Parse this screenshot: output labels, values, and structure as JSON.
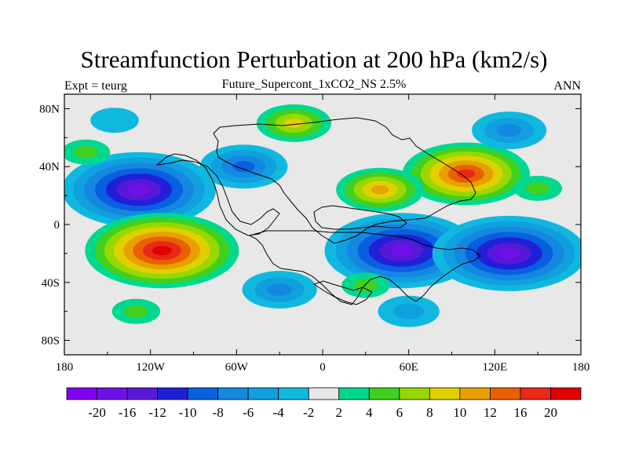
{
  "chart_data": {
    "type": "contour-map",
    "title": "Streamfunction Perturbation at 200 hPa (km2/s)",
    "left_string": "Expt = teurg",
    "center_string": "Future_Supercont_1xCO2_NS 2.5%",
    "right_string": "ANN",
    "x_axis": {
      "range": [
        -180,
        180
      ],
      "ticks": [
        -180,
        -120,
        -60,
        0,
        60,
        120,
        180
      ],
      "tick_labels": [
        "180",
        "120W",
        "60W",
        "0",
        "60E",
        "120E",
        "180"
      ]
    },
    "y_axis": {
      "range": [
        -90,
        90
      ],
      "ticks": [
        80,
        40,
        0,
        -40,
        -80
      ],
      "tick_labels": [
        "80N",
        "40N",
        "0",
        "40S",
        "80S"
      ]
    },
    "colorbar": {
      "levels": [
        -20,
        -16,
        -12,
        -10,
        -8,
        -6,
        -4,
        -2,
        2,
        4,
        6,
        8,
        10,
        12,
        16,
        20
      ],
      "labels": [
        "-20",
        "-16",
        "-12",
        "-10",
        "-8",
        "-6",
        "-4",
        "-2",
        "2",
        "4",
        "6",
        "8",
        "10",
        "12",
        "16",
        "20"
      ],
      "colors": [
        "#8000f0",
        "#7010e8",
        "#5818d8",
        "#2020d8",
        "#0860e0",
        "#1488e0",
        "#10a0e0",
        "#10b8e0",
        "#e8e8e8",
        "#00d890",
        "#40d020",
        "#98d800",
        "#e0d000",
        "#e8a000",
        "#e86000",
        "#e82818",
        "#e00000"
      ]
    },
    "features": [
      {
        "lon": -128,
        "lat": 24,
        "value": -20
      },
      {
        "lon": -112,
        "lat": -18,
        "value": 20
      },
      {
        "lon": 100,
        "lat": 35,
        "value": 16
      },
      {
        "lon": 40,
        "lat": 24,
        "value": 10
      },
      {
        "lon": 55,
        "lat": -18,
        "value": -20
      },
      {
        "lon": 130,
        "lat": -20,
        "value": -20
      },
      {
        "lon": 130,
        "lat": 65,
        "value": -8
      },
      {
        "lon": -55,
        "lat": 40,
        "value": -10
      },
      {
        "lon": -20,
        "lat": 70,
        "value": 8
      },
      {
        "lon": -145,
        "lat": 72,
        "value": -4
      },
      {
        "lon": -30,
        "lat": -45,
        "value": -8
      },
      {
        "lon": 60,
        "lat": -60,
        "value": -6
      },
      {
        "lon": 30,
        "lat": -42,
        "value": 4
      },
      {
        "lon": -165,
        "lat": 50,
        "value": 4
      },
      {
        "lon": -130,
        "lat": -60,
        "value": 4
      },
      {
        "lon": 150,
        "lat": 25,
        "value": 4
      }
    ]
  }
}
